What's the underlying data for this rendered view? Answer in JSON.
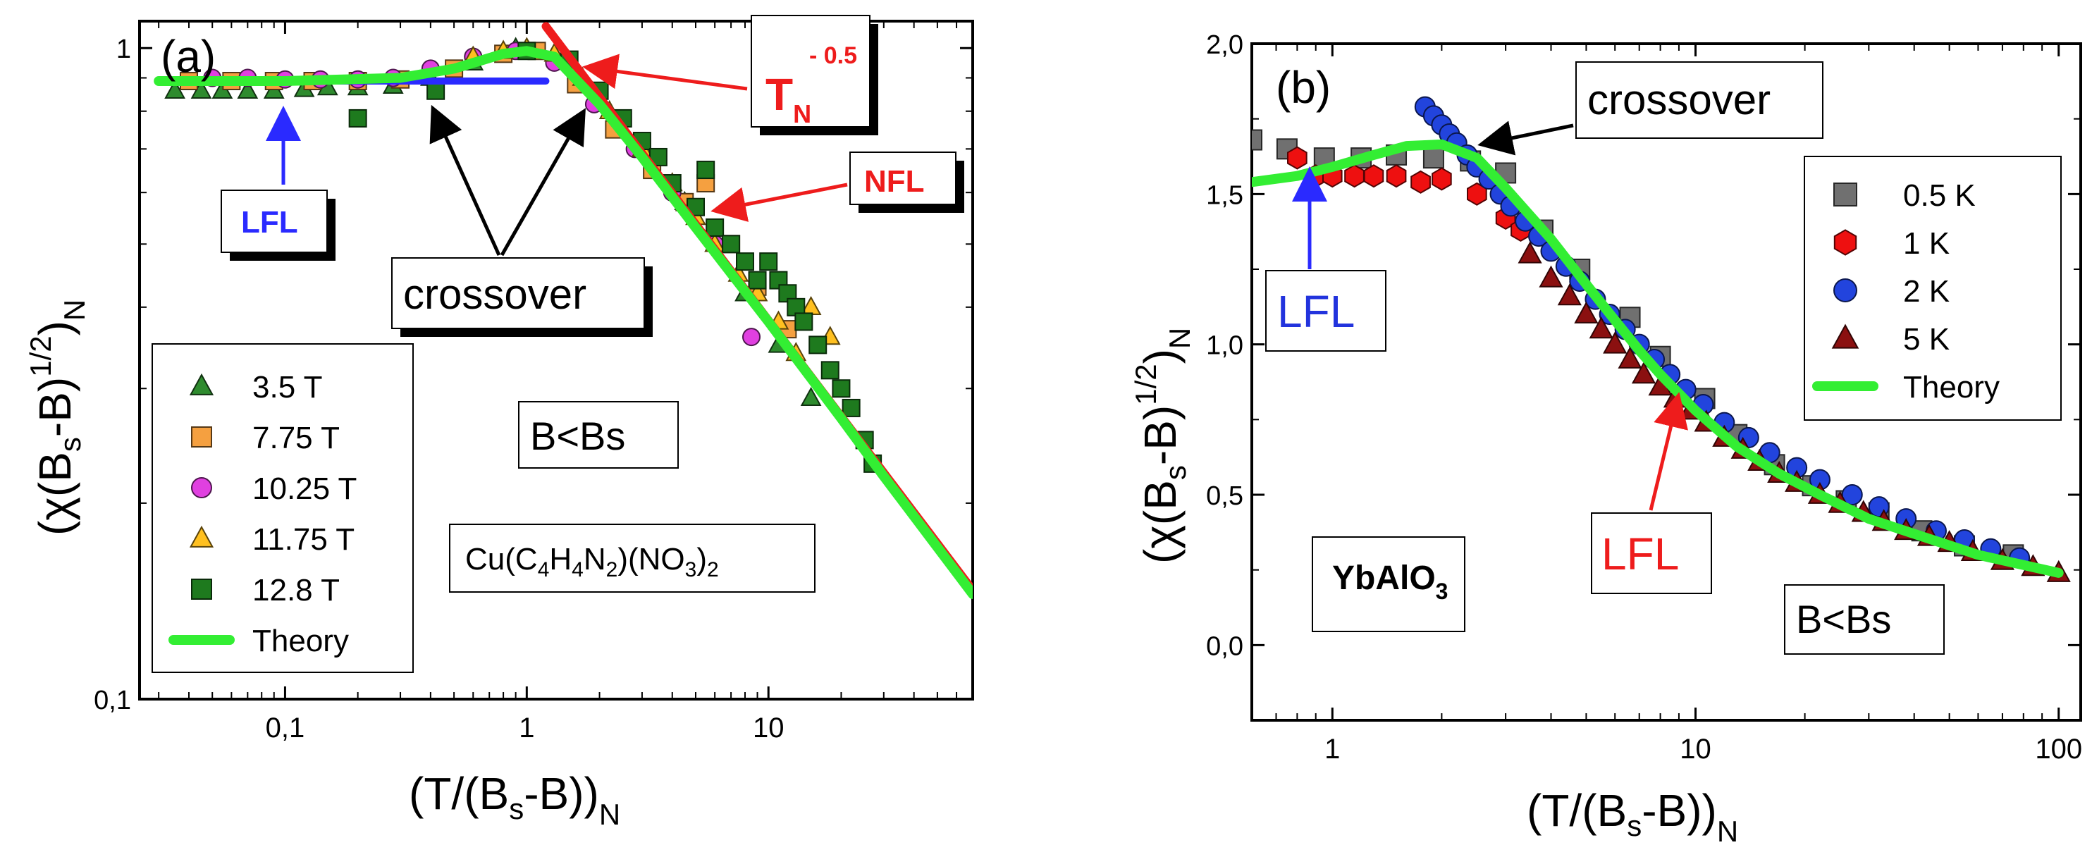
{
  "chart_data": [
    {
      "panel_label": "(a)",
      "type": "scatter",
      "xscale": "log",
      "yscale": "log",
      "xlim": [
        0.025,
        70
      ],
      "ylim": [
        0.1,
        1.1
      ],
      "xticks": [
        {
          "v": 0.1,
          "label": "0,1"
        },
        {
          "v": 1,
          "label": "1"
        },
        {
          "v": 10,
          "label": "10"
        }
      ],
      "yticks": [
        {
          "v": 0.1,
          "label": "0,1"
        },
        {
          "v": 1,
          "label": "1"
        }
      ],
      "xlabel": "(T/(Bₛ-B))ₙ",
      "ylabel": "(χ(Bₛ-B)¹ᐟ²)ₙ",
      "xlabel_parts": {
        "a": "(T/(B",
        "sub": "s",
        "b": "-B))",
        "sub2": "N"
      },
      "ylabel_parts": {
        "a": "(χ(B",
        "sub": "s",
        "b": "-B)",
        "sup": "1/2",
        "c": ")",
        "sub2": "N"
      },
      "legend": {
        "placement": "bottom-left",
        "entries": [
          {
            "label": "3.5 T",
            "marker": "triangle",
            "color": "#2e8b2e"
          },
          {
            "label": "7.75 T",
            "marker": "square",
            "color": "#f5a040"
          },
          {
            "label": "10.25 T",
            "marker": "circle",
            "color": "#e040e0"
          },
          {
            "label": "11.75 T",
            "marker": "triangle",
            "color": "#ffc020"
          },
          {
            "label": "12.8 T",
            "marker": "square",
            "color": "#1e7a1e"
          },
          {
            "label": "Theory",
            "marker": "line",
            "color": "#33ee33"
          }
        ]
      },
      "series": [
        {
          "name": "3.5 T",
          "marker": "triangle",
          "color": "#2e8b2e",
          "x": [
            0.035,
            0.045,
            0.055,
            0.07,
            0.09,
            0.12,
            0.15,
            0.2,
            0.28,
            0.4,
            0.6,
            0.9,
            1.3,
            2,
            3,
            4.5,
            6,
            8,
            11,
            15
          ],
          "y": [
            0.86,
            0.86,
            0.86,
            0.86,
            0.86,
            0.865,
            0.87,
            0.87,
            0.875,
            0.9,
            0.95,
            1.0,
            0.98,
            0.82,
            0.7,
            0.58,
            0.5,
            0.42,
            0.35,
            0.29
          ]
        },
        {
          "name": "7.75 T",
          "marker": "square",
          "color": "#f5a040",
          "x": [
            0.04,
            0.06,
            0.09,
            0.13,
            0.2,
            0.3,
            0.5,
            0.8,
            1.1,
            1.6,
            2.3,
            3.3,
            4.5,
            5.5,
            7,
            9,
            12
          ],
          "y": [
            0.89,
            0.89,
            0.89,
            0.89,
            0.89,
            0.895,
            0.93,
            0.98,
            0.99,
            0.88,
            0.75,
            0.65,
            0.58,
            0.62,
            0.5,
            0.43,
            0.37
          ]
        },
        {
          "name": "10.25 T",
          "marker": "circle",
          "color": "#e040e0",
          "x": [
            0.05,
            0.07,
            0.1,
            0.14,
            0.2,
            0.28,
            0.4,
            0.6,
            0.9,
            1.3,
            1.9,
            2.8,
            4,
            6,
            8.5
          ],
          "y": [
            0.9,
            0.9,
            0.895,
            0.895,
            0.895,
            0.9,
            0.93,
            0.97,
            0.99,
            0.95,
            0.82,
            0.7,
            0.6,
            0.5,
            0.36
          ]
        },
        {
          "name": "11.75 T",
          "marker": "triangle",
          "color": "#ffc020",
          "x": [
            0.6,
            0.8,
            1.0,
            1.3,
            1.7,
            2.2,
            3,
            4,
            5,
            6,
            7.5,
            9,
            11,
            13,
            15,
            18
          ],
          "y": [
            0.97,
            0.99,
            1.0,
            0.98,
            0.9,
            0.8,
            0.7,
            0.62,
            0.55,
            0.5,
            0.45,
            0.42,
            0.38,
            0.34,
            0.4,
            0.36
          ]
        },
        {
          "name": "12.8 T",
          "marker": "square",
          "color": "#1e7a1e",
          "x": [
            0.2,
            0.42,
            1.0,
            1.5,
            2,
            2.5,
            3,
            3.5,
            4,
            5,
            5.5,
            6,
            7,
            8,
            9,
            10,
            11,
            12,
            13,
            14,
            16,
            18,
            20,
            22,
            25,
            27
          ],
          "y": [
            0.78,
            0.86,
            0.99,
            0.96,
            0.86,
            0.78,
            0.72,
            0.68,
            0.62,
            0.57,
            0.65,
            0.53,
            0.5,
            0.47,
            0.44,
            0.47,
            0.44,
            0.42,
            0.4,
            0.38,
            0.35,
            0.32,
            0.3,
            0.28,
            0.25,
            0.23
          ]
        }
      ],
      "theory": {
        "name": "Theory",
        "color": "#33ee33",
        "x": [
          0.03,
          0.1,
          0.3,
          0.5,
          0.8,
          1.0,
          1.3,
          2,
          3,
          5,
          10,
          20,
          30,
          70
        ],
        "y": [
          0.89,
          0.89,
          0.9,
          0.93,
          0.98,
          0.99,
          0.97,
          0.82,
          0.68,
          0.53,
          0.38,
          0.27,
          0.22,
          0.145
        ]
      },
      "lfl_line": {
        "color": "#2a2aff",
        "x": [
          0.03,
          1.2
        ],
        "y": [
          0.89,
          0.89
        ]
      },
      "power_law": {
        "color": "#ee1c1c",
        "x": [
          1.2,
          70
        ],
        "y": [
          1.08,
          0.147
        ]
      },
      "annotations": {
        "power_label": "T",
        "power_sub": "N",
        "power_sup": "- 0.5",
        "nfl": "NFL",
        "lfl": "LFL",
        "crossover": "crossover",
        "regime": "B<Bs",
        "formula_parts": [
          "Cu(C",
          "4",
          "H",
          "4",
          "N",
          "2",
          ")(NO",
          "3",
          ")",
          "2"
        ]
      }
    },
    {
      "panel_label": "(b)",
      "type": "scatter",
      "xscale": "log",
      "yscale": "linear",
      "xlim": [
        0.6,
        115
      ],
      "ylim": [
        -0.25,
        2.0
      ],
      "xticks": [
        {
          "v": 1,
          "label": "1"
        },
        {
          "v": 10,
          "label": "10"
        },
        {
          "v": 100,
          "label": "100"
        }
      ],
      "yticks": [
        {
          "v": 0,
          "label": "0,0"
        },
        {
          "v": 0.5,
          "label": "0,5"
        },
        {
          "v": 1,
          "label": "1,0"
        },
        {
          "v": 1.5,
          "label": "1,5"
        },
        {
          "v": 2,
          "label": "2,0"
        }
      ],
      "xlabel_parts": {
        "a": "(T/(B",
        "sub": "s",
        "b": "-B))",
        "sub2": "N"
      },
      "ylabel_parts": {
        "a": "(χ(B",
        "sub": "s",
        "b": "-B)",
        "sup": "1/2",
        "c": ")",
        "sub2": "N"
      },
      "legend": {
        "placement": "top-right",
        "entries": [
          {
            "label": "0.5 K",
            "marker": "square",
            "color": "#707070"
          },
          {
            "label": "1 K",
            "marker": "hexagon",
            "color": "#ee1010"
          },
          {
            "label": "2 K",
            "marker": "circle",
            "color": "#2244dd"
          },
          {
            "label": "5 K",
            "marker": "triangle",
            "color": "#8b1010"
          },
          {
            "label": "Theory",
            "marker": "line",
            "color": "#33ee33"
          }
        ]
      },
      "series": [
        {
          "name": "0.5 K",
          "marker": "square",
          "color": "#707070",
          "x": [
            0.6,
            0.75,
            0.95,
            1.2,
            1.5,
            1.9,
            2.4,
            3,
            3.8,
            4.8,
            6.6,
            8,
            10.6,
            13,
            16.5,
            21,
            26,
            32,
            42,
            55,
            75
          ],
          "y": [
            1.68,
            1.65,
            1.62,
            1.62,
            1.63,
            1.62,
            1.61,
            1.57,
            1.38,
            1.25,
            1.09,
            0.96,
            0.82,
            0.7,
            0.6,
            0.53,
            0.48,
            0.44,
            0.38,
            0.33,
            0.3
          ]
        },
        {
          "name": "1 K",
          "marker": "hexagon",
          "color": "#ee1010",
          "x": [
            0.8,
            0.9,
            1.0,
            1.15,
            1.3,
            1.5,
            1.75,
            2.0,
            2.5,
            3.0,
            3.3
          ],
          "y": [
            1.62,
            1.56,
            1.56,
            1.56,
            1.56,
            1.56,
            1.54,
            1.55,
            1.5,
            1.42,
            1.38
          ]
        },
        {
          "name": "2 K",
          "marker": "circle",
          "color": "#2244dd",
          "x": [
            1.8,
            1.9,
            2.0,
            2.1,
            2.2,
            2.35,
            2.5,
            2.7,
            2.9,
            3.1,
            3.4,
            3.7,
            4.0,
            4.4,
            4.8,
            5.3,
            5.8,
            6.4,
            7.0,
            7.7,
            8.5,
            9.4,
            10.5,
            12,
            14,
            16,
            19,
            22,
            27,
            32,
            38,
            46,
            55,
            65,
            78
          ],
          "y": [
            1.79,
            1.76,
            1.73,
            1.7,
            1.67,
            1.63,
            1.59,
            1.55,
            1.5,
            1.46,
            1.41,
            1.36,
            1.31,
            1.26,
            1.21,
            1.15,
            1.1,
            1.05,
            1.0,
            0.95,
            0.9,
            0.85,
            0.8,
            0.74,
            0.69,
            0.64,
            0.59,
            0.55,
            0.5,
            0.46,
            0.42,
            0.38,
            0.35,
            0.32,
            0.29
          ]
        },
        {
          "name": "5 K",
          "marker": "triangle",
          "color": "#8b1010",
          "x": [
            3.5,
            4,
            4.5,
            5,
            5.5,
            6,
            6.6,
            7.2,
            8,
            8.8,
            9.7,
            10.7,
            12,
            13.5,
            15,
            17,
            19,
            22,
            25,
            29,
            33,
            38,
            44,
            50,
            58,
            70,
            85,
            100
          ],
          "y": [
            1.3,
            1.22,
            1.16,
            1.1,
            1.05,
            1.0,
            0.95,
            0.9,
            0.86,
            0.82,
            0.78,
            0.74,
            0.69,
            0.65,
            0.61,
            0.57,
            0.54,
            0.5,
            0.47,
            0.44,
            0.41,
            0.38,
            0.36,
            0.34,
            0.31,
            0.28,
            0.26,
            0.24
          ]
        }
      ],
      "theory": {
        "name": "Theory",
        "color": "#33ee33",
        "x": [
          0.6,
          0.8,
          1.0,
          1.3,
          1.6,
          2.0,
          2.5,
          3.0,
          4,
          5,
          6,
          7,
          8,
          10,
          13,
          17,
          22,
          30,
          40,
          60,
          100
        ],
        "y": [
          1.54,
          1.56,
          1.59,
          1.63,
          1.66,
          1.665,
          1.62,
          1.52,
          1.35,
          1.2,
          1.08,
          0.98,
          0.9,
          0.78,
          0.66,
          0.57,
          0.5,
          0.42,
          0.37,
          0.3,
          0.24
        ]
      },
      "annotations": {
        "crossover": "crossover",
        "lfl_left": "LFL",
        "lfl_bottom": "LFL",
        "regime": "B<Bs",
        "compound_a": "YbAlO",
        "compound_sub": "3"
      }
    }
  ]
}
